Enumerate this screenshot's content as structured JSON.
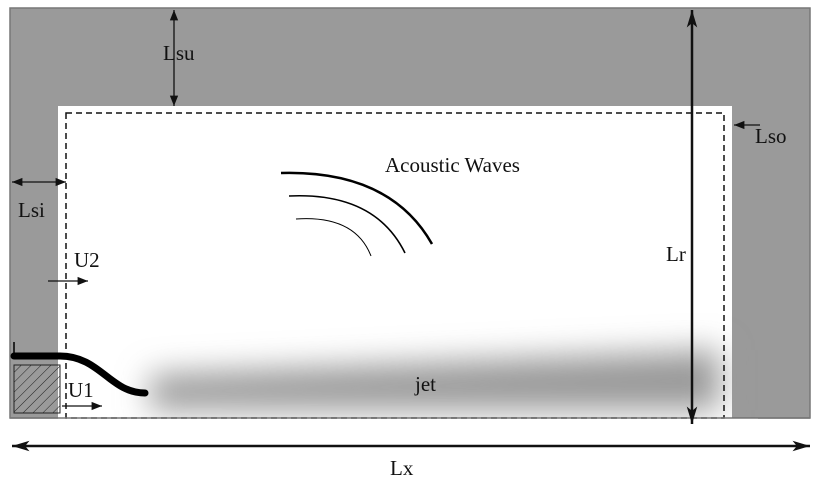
{
  "labels": {
    "lsu": "Lsu",
    "lso": "Lso",
    "lsi": "Lsi",
    "u2": "U2",
    "u1": "U1",
    "acoustic": "Acoustic Waves",
    "lr": "Lr",
    "jet": "jet",
    "lx": "Lx"
  }
}
